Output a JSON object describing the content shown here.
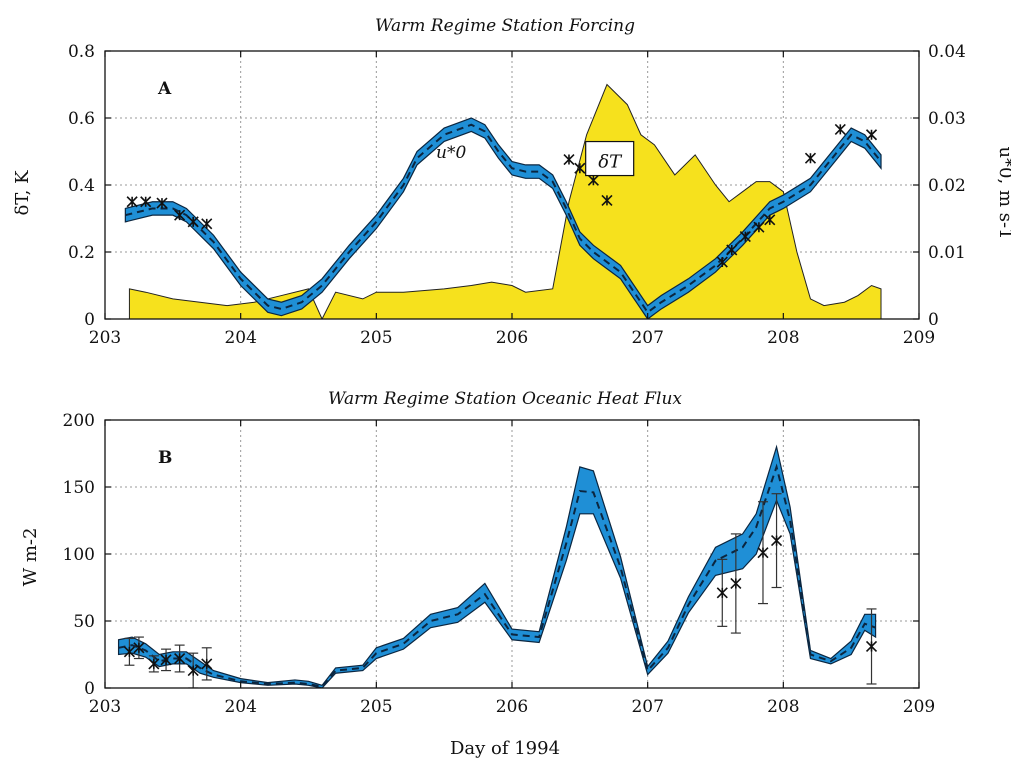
{
  "chart_data": [
    {
      "panel": "A",
      "type": "line",
      "title": "Warm Regime Station Forcing",
      "xlim": [
        203,
        209
      ],
      "ylim": [
        0,
        0.8
      ],
      "y2lim": [
        0,
        0.04
      ],
      "xticks": [
        "203",
        "204",
        "205",
        "206",
        "207",
        "208",
        "209"
      ],
      "yticks": [
        "0",
        "0.2",
        "0.4",
        "0.6",
        "0.8"
      ],
      "y2ticks": [
        "0",
        "0.01",
        "0.02",
        "0.03",
        "0.04"
      ],
      "ylabel": "δT, K",
      "y2label": "u*0, m s-1",
      "grid": true,
      "annotations": {
        "dT_box": "δT",
        "ustar_label": "u*0"
      },
      "colors": {
        "fill": "#f6e11d",
        "band": "#1f8fd6",
        "line": "#0b2640"
      },
      "series": [
        {
          "name": "δT",
          "style": "filled-area",
          "x": [
            203.18,
            203.3,
            203.5,
            203.7,
            203.9,
            204.1,
            204.3,
            204.5,
            204.6,
            204.7,
            204.9,
            205.0,
            205.2,
            205.5,
            205.7,
            205.85,
            206.0,
            206.1,
            206.3,
            206.42,
            206.55,
            206.7,
            206.85,
            206.95,
            207.05,
            207.2,
            207.35,
            207.5,
            207.6,
            207.7,
            207.8,
            207.9,
            208.0,
            208.1,
            208.2,
            208.3,
            208.45,
            208.55,
            208.65,
            208.72
          ],
          "values": [
            0.09,
            0.08,
            0.06,
            0.05,
            0.04,
            0.05,
            0.07,
            0.09,
            0.0,
            0.08,
            0.06,
            0.08,
            0.08,
            0.09,
            0.1,
            0.11,
            0.1,
            0.08,
            0.09,
            0.35,
            0.55,
            0.7,
            0.64,
            0.55,
            0.52,
            0.43,
            0.49,
            0.4,
            0.35,
            0.38,
            0.41,
            0.41,
            0.38,
            0.2,
            0.06,
            0.04,
            0.05,
            0.07,
            0.1,
            0.09
          ]
        },
        {
          "name": "u*0",
          "axis": "right",
          "style": "band-dashed",
          "x": [
            203.15,
            203.35,
            203.5,
            203.6,
            203.8,
            204.0,
            204.2,
            204.3,
            204.45,
            204.6,
            204.8,
            205.0,
            205.2,
            205.3,
            205.5,
            205.7,
            205.8,
            205.9,
            206.0,
            206.1,
            206.2,
            206.3,
            206.4,
            206.5,
            206.6,
            206.7,
            206.8,
            206.9,
            207.0,
            207.1,
            207.3,
            207.5,
            207.7,
            207.9,
            208.0,
            208.2,
            208.4,
            208.5,
            208.6,
            208.72
          ],
          "values": [
            0.0155,
            0.0165,
            0.0165,
            0.0155,
            0.0115,
            0.006,
            0.002,
            0.0015,
            0.0025,
            0.005,
            0.01,
            0.0145,
            0.02,
            0.024,
            0.0275,
            0.029,
            0.028,
            0.025,
            0.0225,
            0.022,
            0.022,
            0.0205,
            0.0165,
            0.012,
            0.01,
            0.0085,
            0.007,
            0.004,
            0.001,
            0.0025,
            0.005,
            0.008,
            0.012,
            0.0165,
            0.0175,
            0.02,
            0.025,
            0.0275,
            0.0265,
            0.0235
          ],
          "band_halfwidth": 0.001
        },
        {
          "name": "observations",
          "axis": "right",
          "style": "markers-x",
          "x": [
            203.2,
            203.3,
            203.42,
            203.55,
            203.65,
            203.75,
            206.42,
            206.5,
            206.6,
            206.7,
            207.55,
            207.62,
            207.72,
            207.82,
            207.9,
            208.2,
            208.42,
            208.65
          ],
          "values": [
            0.0175,
            0.0175,
            0.0173,
            0.0155,
            0.0145,
            0.0142,
            0.0238,
            0.0225,
            0.0207,
            0.0177,
            0.0085,
            0.0103,
            0.0123,
            0.0137,
            0.0148,
            0.024,
            0.0283,
            0.0275
          ]
        }
      ]
    },
    {
      "panel": "B",
      "type": "line",
      "title": "Warm Regime Station Oceanic Heat Flux",
      "xlim": [
        203,
        209
      ],
      "ylim": [
        0,
        200
      ],
      "xticks": [
        "203",
        "204",
        "205",
        "206",
        "207",
        "208",
        "209"
      ],
      "yticks": [
        "0",
        "50",
        "100",
        "150",
        "200"
      ],
      "xlabel": "Day of 1994",
      "ylabel": "W m-2",
      "grid": true,
      "colors": {
        "band": "#1f8fd6",
        "line": "#0b2640"
      },
      "series": [
        {
          "name": "heat flux",
          "style": "band-dashed",
          "x": [
            203.1,
            203.2,
            203.3,
            203.4,
            203.5,
            203.6,
            203.7,
            203.8,
            204.0,
            204.2,
            204.4,
            204.5,
            204.6,
            204.7,
            204.9,
            205.0,
            205.2,
            205.4,
            205.6,
            205.8,
            206.0,
            206.2,
            206.4,
            206.5,
            206.6,
            206.8,
            207.0,
            207.15,
            207.3,
            207.5,
            207.7,
            207.8,
            207.95,
            208.05,
            208.2,
            208.35,
            208.5,
            208.6,
            208.68
          ],
          "values": [
            30,
            32,
            28,
            20,
            22,
            22,
            15,
            10,
            5,
            3,
            4,
            3,
            1,
            13,
            15,
            26,
            33,
            50,
            55,
            70,
            40,
            38,
            108,
            147,
            146,
            90,
            13,
            30,
            62,
            95,
            105,
            120,
            165,
            125,
            25,
            20,
            30,
            48,
            45
          ],
          "band_lower": [
            25,
            26,
            23,
            16,
            18,
            18,
            11,
            8,
            4,
            2,
            3,
            2,
            0,
            11,
            13,
            22,
            29,
            45,
            49,
            64,
            36,
            34,
            95,
            130,
            130,
            82,
            10,
            26,
            56,
            84,
            89,
            100,
            140,
            115,
            22,
            18,
            25,
            43,
            38
          ],
          "band_upper": [
            36,
            38,
            33,
            25,
            27,
            27,
            20,
            13,
            7,
            4,
            6,
            5,
            2,
            15,
            17,
            30,
            37,
            55,
            60,
            78,
            44,
            42,
            120,
            165,
            162,
            98,
            16,
            35,
            68,
            105,
            115,
            130,
            180,
            135,
            28,
            22,
            35,
            55,
            55
          ]
        },
        {
          "name": "observations",
          "style": "markers-x-errorbars",
          "x": [
            203.18,
            203.25,
            203.36,
            203.45,
            203.55,
            203.65,
            203.75,
            207.55,
            207.65,
            207.85,
            207.95,
            208.65
          ],
          "values": [
            27,
            30,
            18,
            21,
            22,
            13,
            18,
            71,
            78,
            101,
            110,
            31
          ],
          "err": [
            10,
            8,
            6,
            8,
            10,
            13,
            12,
            25,
            37,
            38,
            35,
            28
          ]
        }
      ]
    }
  ]
}
